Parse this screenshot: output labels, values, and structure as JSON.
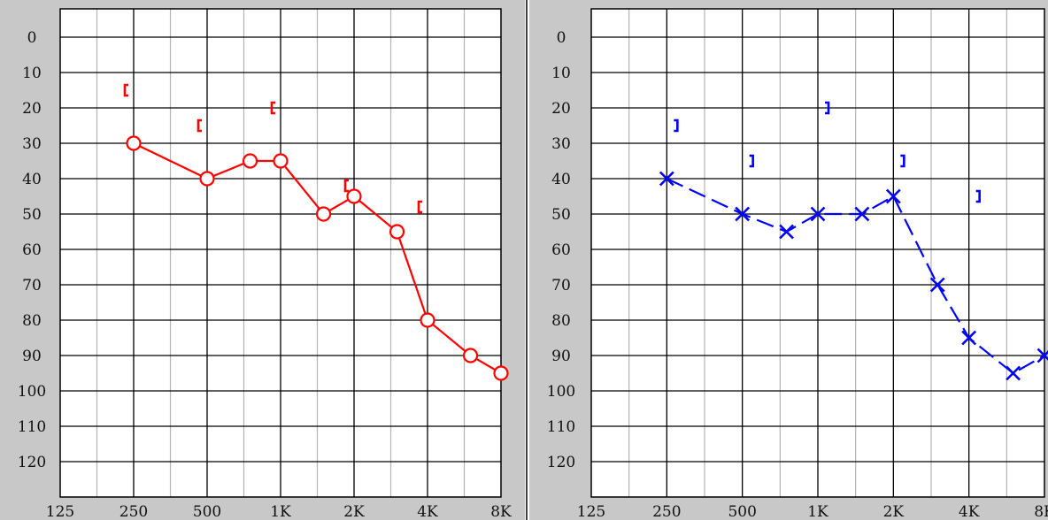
{
  "chart_data": [
    {
      "type": "line",
      "title": "",
      "xlabel": "",
      "ylabel": "",
      "x_scale": "log2",
      "x_ticks": [
        "125",
        "250",
        "500",
        "1K",
        "2K",
        "4K",
        "8K"
      ],
      "y_ticks": [
        "0",
        "10",
        "20",
        "30",
        "40",
        "50",
        "60",
        "70",
        "80",
        "90",
        "100",
        "110",
        "120"
      ],
      "ylim": [
        -8,
        130
      ],
      "y_inverted": true,
      "grid": true,
      "series": [
        {
          "marker": "circle",
          "color": "#ff0000",
          "line_style": "solid",
          "x": [
            250,
            500,
            750,
            1000,
            1500,
            2000,
            3000,
            4000,
            6000,
            8000
          ],
          "values": [
            30,
            40,
            35,
            35,
            50,
            45,
            55,
            80,
            90,
            95
          ]
        },
        {
          "marker": "left-bracket",
          "color": "#ff0000",
          "line_style": "none",
          "x": [
            250,
            500,
            1000,
            2000,
            4000
          ],
          "values": [
            15,
            25,
            20,
            42,
            48
          ]
        }
      ]
    },
    {
      "type": "line",
      "title": "",
      "xlabel": "",
      "ylabel": "",
      "x_scale": "log2",
      "x_ticks": [
        "125",
        "250",
        "500",
        "1K",
        "2K",
        "4K",
        "8K"
      ],
      "y_ticks": [
        "0",
        "10",
        "20",
        "30",
        "40",
        "50",
        "60",
        "70",
        "80",
        "90",
        "100",
        "110",
        "120"
      ],
      "ylim": [
        -8,
        130
      ],
      "y_inverted": true,
      "grid": true,
      "series": [
        {
          "marker": "x",
          "color": "#0000ff",
          "line_style": "dashed",
          "x": [
            250,
            500,
            750,
            1000,
            1500,
            2000,
            3000,
            4000,
            6000,
            8000
          ],
          "values": [
            40,
            50,
            55,
            50,
            50,
            45,
            70,
            85,
            95,
            90
          ]
        },
        {
          "marker": "right-bracket",
          "color": "#0000ff",
          "line_style": "none",
          "x": [
            250,
            500,
            1000,
            2000,
            4000
          ],
          "values": [
            25,
            35,
            20,
            35,
            45
          ]
        }
      ]
    }
  ]
}
